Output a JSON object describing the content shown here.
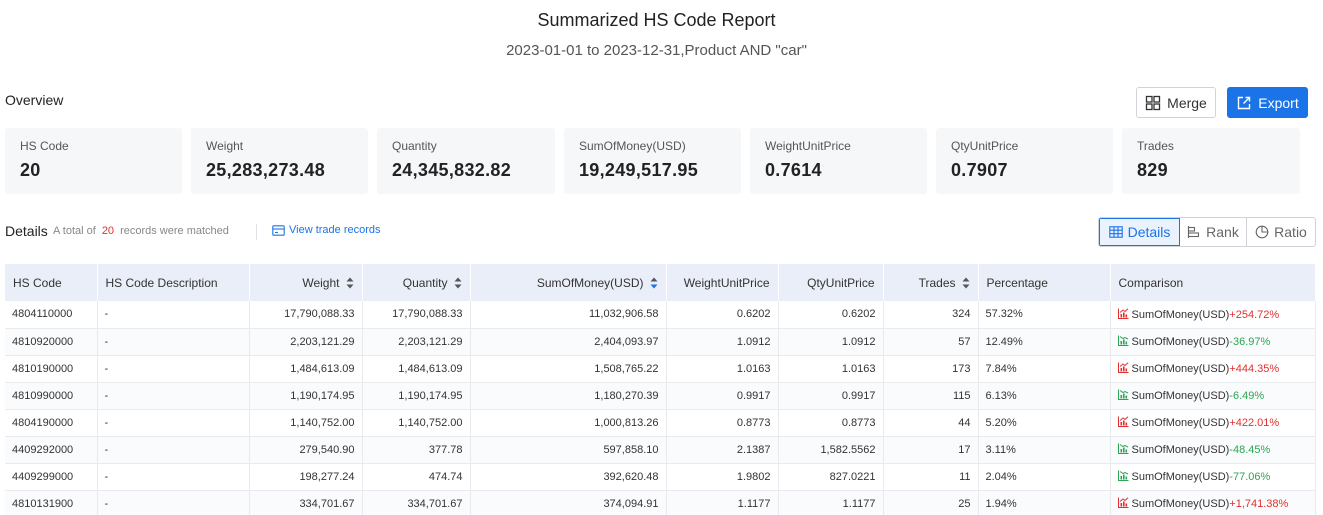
{
  "report": {
    "title": "Summarized HS Code Report",
    "subtitle": "2023-01-01 to 2023-12-31,Product AND \"car\""
  },
  "overview": {
    "label": "Overview",
    "merge_label": "Merge",
    "export_label": "Export",
    "stats": [
      {
        "label": "HS Code",
        "value": "20"
      },
      {
        "label": "Weight",
        "value": "25,283,273.48"
      },
      {
        "label": "Quantity",
        "value": "24,345,832.82"
      },
      {
        "label": "SumOfMoney(USD)",
        "value": "19,249,517.95"
      },
      {
        "label": "WeightUnitPrice",
        "value": "0.7614"
      },
      {
        "label": "QtyUnitPrice",
        "value": "0.7907"
      },
      {
        "label": "Trades",
        "value": "829"
      }
    ]
  },
  "details": {
    "label": "Details",
    "matched_prefix": "A total of",
    "matched_count": "20",
    "matched_suffix": "records were matched",
    "view_link": "View trade records",
    "views": [
      "Details",
      "Rank",
      "Ratio"
    ],
    "active_view": "Details",
    "accent_color": "#1b73e8",
    "up_color": "#e0302f",
    "down_color": "#2aa752"
  },
  "table": {
    "columns": [
      "HS Code",
      "HS Code Description",
      "Weight",
      "Quantity",
      "SumOfMoney(USD)",
      "WeightUnitPrice",
      "QtyUnitPrice",
      "Trades",
      "Percentage",
      "Comparison"
    ],
    "rows": [
      {
        "hs": "4804110000",
        "desc": "-",
        "weight": "17,790,088.33",
        "qty": "17,790,088.33",
        "money": "11,032,906.58",
        "wup": "0.6202",
        "qup": "0.6202",
        "trades": "324",
        "pct": "57.32%",
        "cmp_label": "SumOfMoney(USD)",
        "cmp": "+254.72%",
        "dir": "up"
      },
      {
        "hs": "4810920000",
        "desc": "-",
        "weight": "2,203,121.29",
        "qty": "2,203,121.29",
        "money": "2,404,093.97",
        "wup": "1.0912",
        "qup": "1.0912",
        "trades": "57",
        "pct": "12.49%",
        "cmp_label": "SumOfMoney(USD)",
        "cmp": "-36.97%",
        "dir": "down"
      },
      {
        "hs": "4810190000",
        "desc": "-",
        "weight": "1,484,613.09",
        "qty": "1,484,613.09",
        "money": "1,508,765.22",
        "wup": "1.0163",
        "qup": "1.0163",
        "trades": "173",
        "pct": "7.84%",
        "cmp_label": "SumOfMoney(USD)",
        "cmp": "+444.35%",
        "dir": "up"
      },
      {
        "hs": "4810990000",
        "desc": "-",
        "weight": "1,190,174.95",
        "qty": "1,190,174.95",
        "money": "1,180,270.39",
        "wup": "0.9917",
        "qup": "0.9917",
        "trades": "115",
        "pct": "6.13%",
        "cmp_label": "SumOfMoney(USD)",
        "cmp": "-6.49%",
        "dir": "down"
      },
      {
        "hs": "4804190000",
        "desc": "-",
        "weight": "1,140,752.00",
        "qty": "1,140,752.00",
        "money": "1,000,813.26",
        "wup": "0.8773",
        "qup": "0.8773",
        "trades": "44",
        "pct": "5.20%",
        "cmp_label": "SumOfMoney(USD)",
        "cmp": "+422.01%",
        "dir": "up"
      },
      {
        "hs": "4409292000",
        "desc": "-",
        "weight": "279,540.90",
        "qty": "377.78",
        "money": "597,858.10",
        "wup": "2.1387",
        "qup": "1,582.5562",
        "trades": "17",
        "pct": "3.11%",
        "cmp_label": "SumOfMoney(USD)",
        "cmp": "-48.45%",
        "dir": "down"
      },
      {
        "hs": "4409299000",
        "desc": "-",
        "weight": "198,277.24",
        "qty": "474.74",
        "money": "392,620.48",
        "wup": "1.9802",
        "qup": "827.0221",
        "trades": "11",
        "pct": "2.04%",
        "cmp_label": "SumOfMoney(USD)",
        "cmp": "-77.06%",
        "dir": "down"
      },
      {
        "hs": "4810131900",
        "desc": "-",
        "weight": "334,701.67",
        "qty": "334,701.67",
        "money": "374,094.91",
        "wup": "1.1177",
        "qup": "1.1177",
        "trades": "25",
        "pct": "1.94%",
        "cmp_label": "SumOfMoney(USD)",
        "cmp": "+1,741.38%",
        "dir": "up"
      }
    ]
  }
}
